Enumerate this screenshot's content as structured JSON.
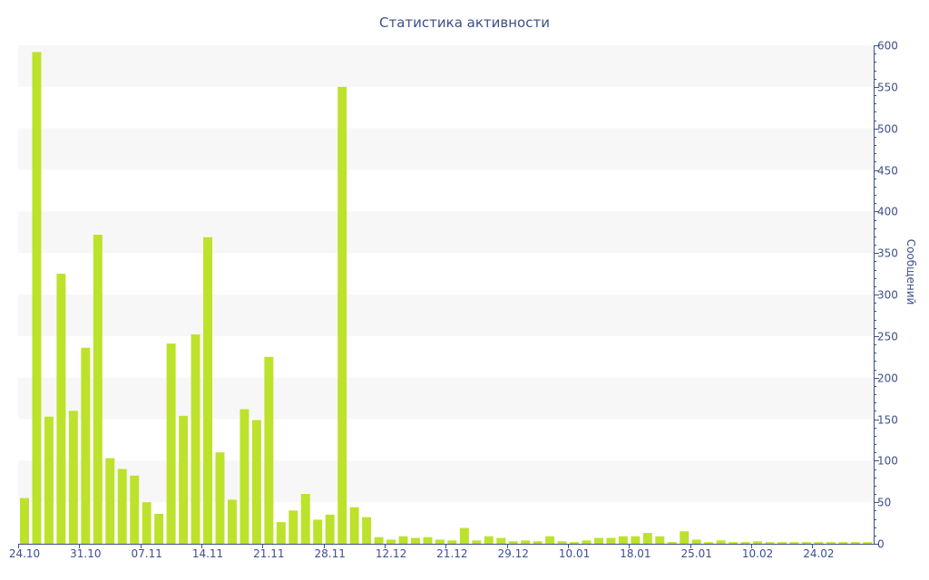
{
  "chart_data": {
    "type": "bar",
    "title": "Статистика активности",
    "ylabel": "Сообщений",
    "y_axis_side": "right",
    "ylim": [
      0,
      600
    ],
    "y_ticks": [
      0,
      50,
      100,
      150,
      200,
      250,
      300,
      350,
      400,
      450,
      500,
      550,
      600
    ],
    "x_ticks": [
      "24.10",
      "31.10",
      "07.11",
      "14.11",
      "21.11",
      "28.11",
      "12.12",
      "21.12",
      "29.12",
      "10.01",
      "18.01",
      "25.01",
      "10.02",
      "24.02"
    ],
    "x_tick_bar_index": [
      0,
      5,
      10,
      15,
      20,
      25,
      30,
      35,
      40,
      45,
      50,
      55,
      60,
      65
    ],
    "bar_color": "#bde22b",
    "band_color": "#f7f7f7",
    "axis_color": "#3d4f8a",
    "grid": "alternating horizontal bands",
    "values": [
      55,
      592,
      153,
      325,
      160,
      236,
      372,
      103,
      90,
      82,
      50,
      36,
      241,
      154,
      252,
      369,
      110,
      53,
      162,
      149,
      225,
      26,
      40,
      60,
      29,
      35,
      550,
      44,
      32,
      8,
      5,
      9,
      7,
      8,
      5,
      4,
      19,
      4,
      9,
      7,
      3,
      4,
      3,
      9,
      3,
      2,
      4,
      7,
      7,
      9,
      9,
      13,
      9,
      2,
      15,
      5,
      2,
      4,
      2,
      2,
      3,
      2,
      2,
      2,
      2,
      2,
      2,
      2,
      2,
      2
    ]
  }
}
